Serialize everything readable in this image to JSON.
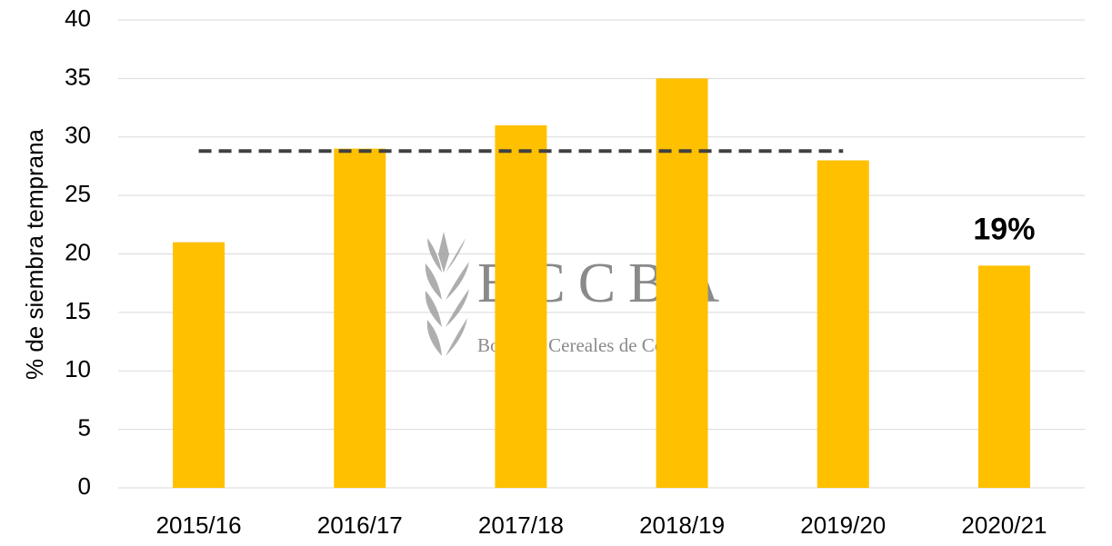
{
  "chart_data": {
    "type": "bar",
    "ylabel": "% de siembra temprana",
    "categories": [
      "2015/16",
      "2016/17",
      "2017/18",
      "2018/19",
      "2019/20",
      "2020/21"
    ],
    "values": [
      21,
      29,
      31,
      35,
      28,
      19
    ],
    "value_labels": [
      null,
      null,
      null,
      null,
      null,
      "19%"
    ],
    "color": "#ffc000",
    "ylim": [
      0,
      40
    ],
    "yticks": [
      0,
      5,
      10,
      15,
      20,
      25,
      30,
      35,
      40
    ],
    "grid": true,
    "reference_line": {
      "values": [
        28.8,
        28.8,
        28.8,
        28.8,
        28.8,
        null
      ],
      "color": "#404040"
    },
    "watermark": {
      "title": "BCCBA",
      "subtitle": "Bolsa de Cereales de Córdoba"
    }
  }
}
